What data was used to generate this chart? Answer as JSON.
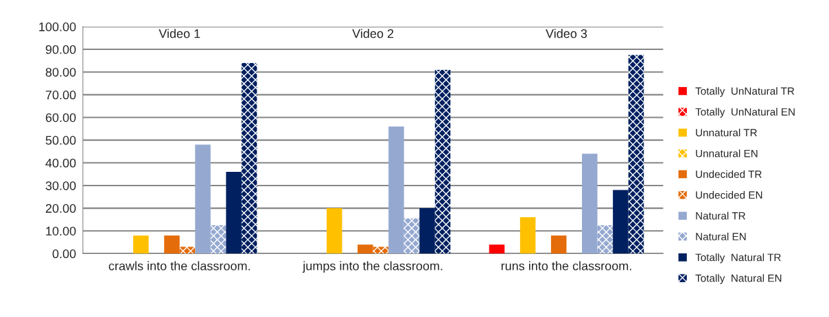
{
  "chart_data": {
    "type": "bar",
    "categories": [
      "crawls into the classroom.",
      "jumps into the classroom.",
      "runs into the classroom."
    ],
    "series": [
      {
        "name": "Totally  UnNatural TR",
        "color": "#ff0000",
        "values": [
          0,
          0,
          4
        ]
      },
      {
        "name": "Totally  UnNatural EN",
        "color": "#ff0000",
        "values": [
          0,
          0,
          0
        ]
      },
      {
        "name": "Unnatural TR",
        "color": "#ffc000",
        "values": [
          8,
          20,
          16
        ]
      },
      {
        "name": "Unnatural EN",
        "color": "#ffc000",
        "values": [
          0,
          0,
          0
        ]
      },
      {
        "name": "Undecided TR",
        "color": "#e46c0a",
        "values": [
          8,
          4,
          8
        ]
      },
      {
        "name": "Undecided EN",
        "color": "#e46c0a",
        "values": [
          3,
          3,
          0
        ]
      },
      {
        "name": "Natural TR",
        "color": "#95a9d0",
        "values": [
          48,
          56,
          44
        ]
      },
      {
        "name": "Natural EN",
        "color": "#95a9d0",
        "values": [
          12.5,
          15.5,
          12.5
        ]
      },
      {
        "name": "Totally  Natural TR",
        "color": "#002060",
        "values": [
          36,
          20,
          28
        ]
      },
      {
        "name": "Totally  Natural EN",
        "color": "#002060",
        "values": [
          84,
          81,
          87.5
        ]
      }
    ],
    "annotations": [
      "Video 1",
      "Video 2",
      "Video 3"
    ],
    "ylim": [
      0,
      100
    ],
    "yticks": [
      {
        "value": 0,
        "label": "0.00"
      },
      {
        "value": 10,
        "label": "10.00"
      },
      {
        "value": 20,
        "label": "20.00"
      },
      {
        "value": 30,
        "label": "30.00"
      },
      {
        "value": 40,
        "label": "40.00"
      },
      {
        "value": 50,
        "label": "50.00"
      },
      {
        "value": 60,
        "label": "60.00"
      },
      {
        "value": 70,
        "label": "70.00"
      },
      {
        "value": 80,
        "label": "80.00"
      },
      {
        "value": 90,
        "label": "90.00"
      },
      {
        "value": 100,
        "label": "100.00"
      }
    ],
    "grid": "y",
    "legend": "right"
  }
}
